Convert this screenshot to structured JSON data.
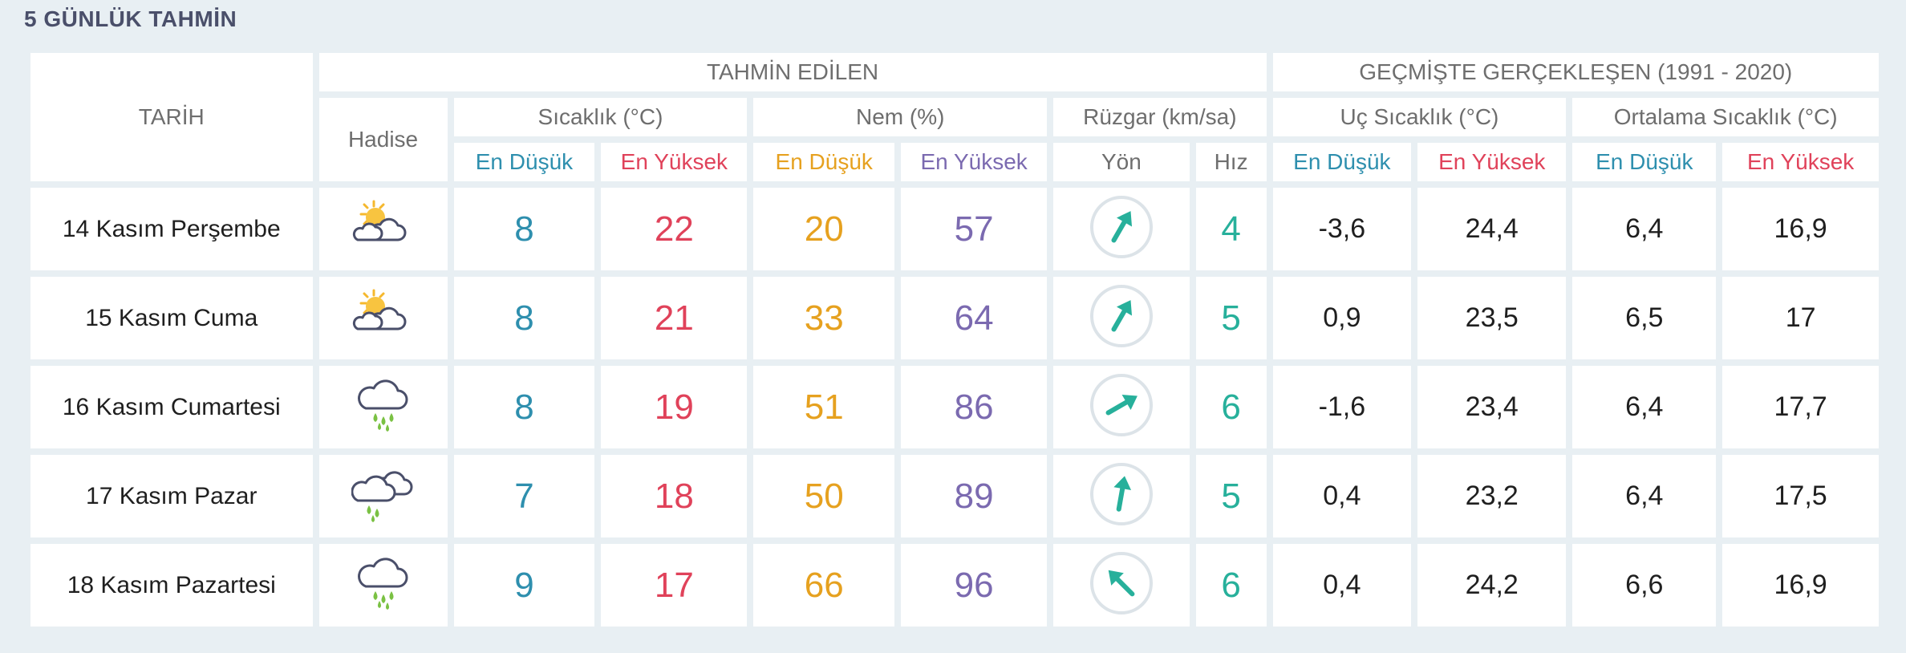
{
  "page_title": "5 GÜNLÜK TAHMİN",
  "header": {
    "tarih": "TARİH",
    "tahmin_edilen": "TAHMİN EDİLEN",
    "gecmiste": "GEÇMİŞTE GERÇEKLEŞEN (1991 - 2020)",
    "hadise": "Hadise",
    "sicaklik": "Sıcaklık (°C)",
    "nem": "Nem (%)",
    "ruzgar": "Rüzgar (km/sa)",
    "uc_sicaklik": "Uç Sıcaklık (°C)",
    "ortalama_sicaklik": "Ortalama Sıcaklık (°C)",
    "en_dusuk": "En Düşük",
    "en_yuksek": "En Yüksek",
    "yon": "Yön",
    "hiz": "Hız"
  },
  "colors": {
    "min": "#2e8fae",
    "max": "#e0425a",
    "humidity_min": "#e6a11f",
    "humidity_max": "#7b6ab0",
    "wind": "#27b09b"
  },
  "rows": [
    {
      "date": "14 Kasım Perşembe",
      "icon": "partly-cloudy-icon",
      "temp_min": "8",
      "temp_max": "22",
      "hum_min": "20",
      "hum_max": "57",
      "wind_icon": "wind-direction-icon",
      "wind_dir_deg": 30,
      "wind_speed": "4",
      "hist_min": "-3,6",
      "hist_max": "24,4",
      "avg_min": "6,4",
      "avg_max": "16,9"
    },
    {
      "date": "15 Kasım Cuma",
      "icon": "partly-cloudy-icon",
      "temp_min": "8",
      "temp_max": "21",
      "hum_min": "33",
      "hum_max": "64",
      "wind_icon": "wind-direction-icon",
      "wind_dir_deg": 30,
      "wind_speed": "5",
      "hist_min": "0,9",
      "hist_max": "23,5",
      "avg_min": "6,5",
      "avg_max": "17"
    },
    {
      "date": "16 Kasım Cumartesi",
      "icon": "rain-cloud-icon",
      "temp_min": "8",
      "temp_max": "19",
      "hum_min": "51",
      "hum_max": "86",
      "wind_icon": "wind-direction-icon",
      "wind_dir_deg": 60,
      "wind_speed": "6",
      "hist_min": "-1,6",
      "hist_max": "23,4",
      "avg_min": "6,4",
      "avg_max": "17,7"
    },
    {
      "date": "17 Kasım Pazar",
      "icon": "cloudy-rain-icon",
      "temp_min": "7",
      "temp_max": "18",
      "hum_min": "50",
      "hum_max": "89",
      "wind_icon": "wind-direction-icon",
      "wind_dir_deg": 10,
      "wind_speed": "5",
      "hist_min": "0,4",
      "hist_max": "23,2",
      "avg_min": "6,4",
      "avg_max": "17,5"
    },
    {
      "date": "18 Kasım Pazartesi",
      "icon": "rain-cloud-icon",
      "temp_min": "9",
      "temp_max": "17",
      "hum_min": "66",
      "hum_max": "96",
      "wind_icon": "wind-direction-icon",
      "wind_dir_deg": -45,
      "wind_speed": "6",
      "hist_min": "0,4",
      "hist_max": "24,2",
      "avg_min": "6,6",
      "avg_max": "16,9"
    }
  ]
}
